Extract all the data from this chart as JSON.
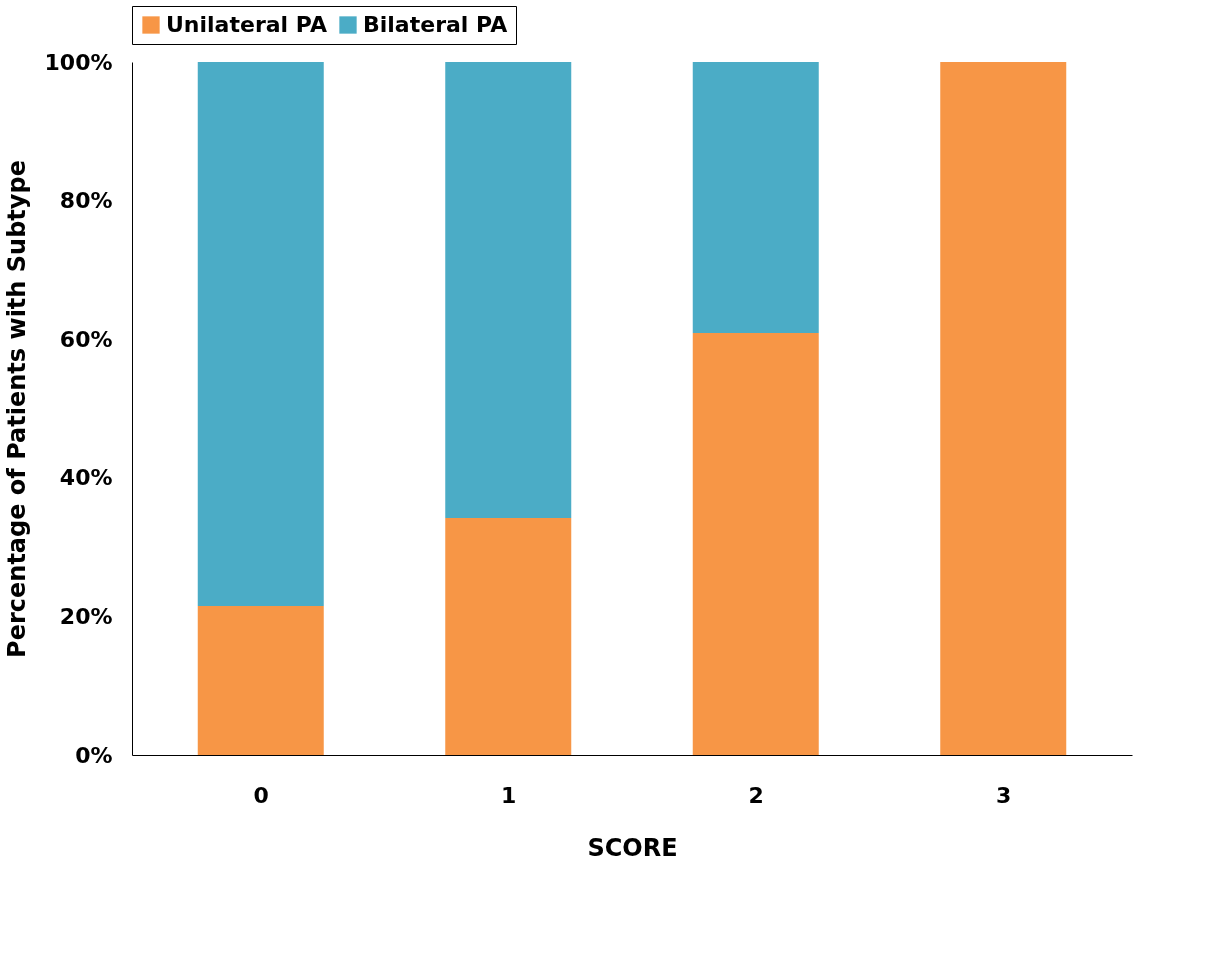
{
  "chart_data": {
    "type": "bar",
    "stacked": true,
    "xlabel": "SCORE",
    "ylabel": "Percentage of Patients with Subtype",
    "categories": [
      "0",
      "1",
      "2",
      "3"
    ],
    "series": [
      {
        "name": "Unilateral PA",
        "color": "#f79646",
        "values": [
          21.5,
          34.2,
          60.9,
          100
        ]
      },
      {
        "name": "Bilateral PA",
        "color": "#4bacc6",
        "values": [
          78.5,
          65.8,
          39.1,
          0
        ]
      }
    ],
    "ylim": [
      0,
      100
    ],
    "yticks": [
      {
        "value": 0,
        "label": "0%"
      },
      {
        "value": 20,
        "label": "20%"
      },
      {
        "value": 40,
        "label": "40%"
      },
      {
        "value": 60,
        "label": "60%"
      },
      {
        "value": 80,
        "label": "80%"
      },
      {
        "value": 100,
        "label": "100%"
      }
    ],
    "legend": "top",
    "grid": false
  }
}
